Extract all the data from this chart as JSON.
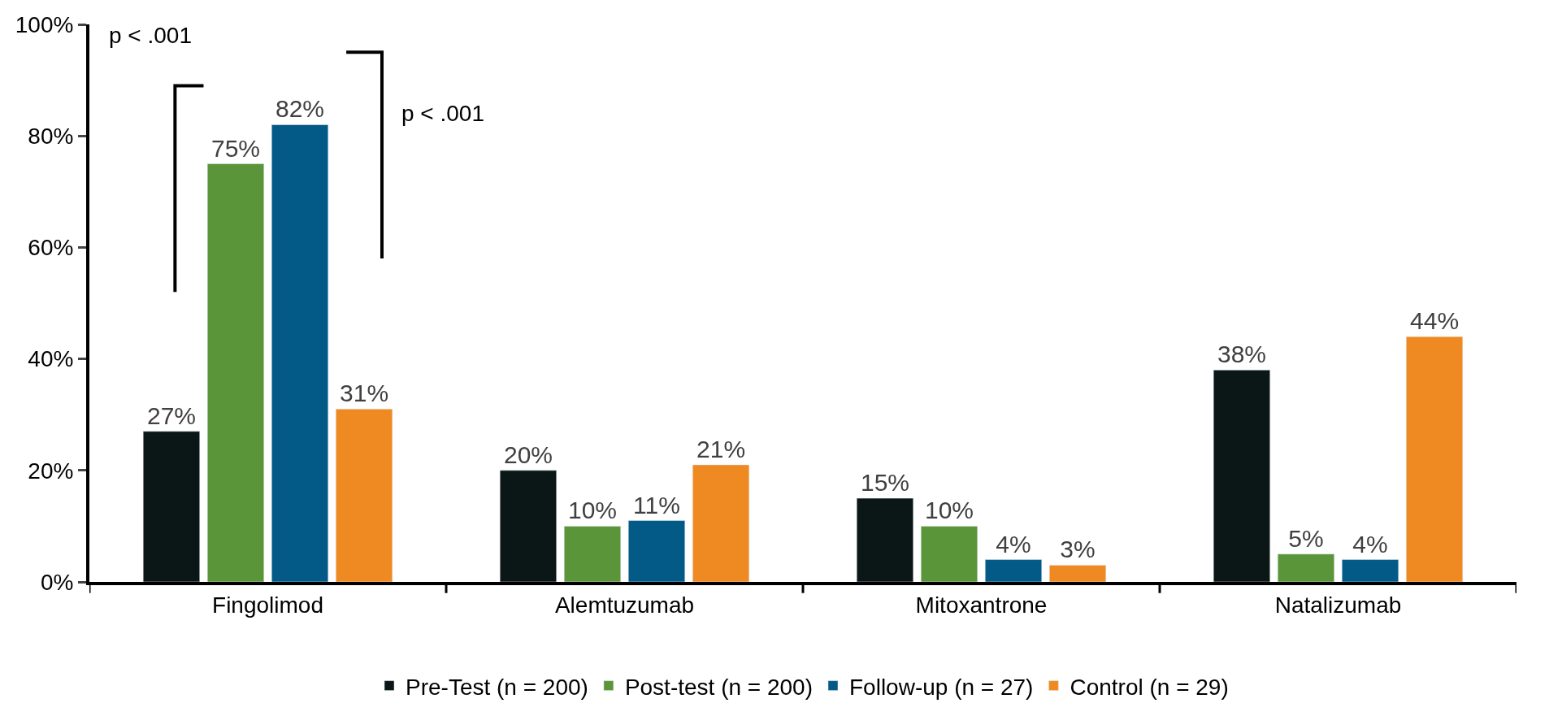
{
  "chart_data": {
    "type": "bar",
    "categories": [
      "Fingolimod",
      "Alemtuzumab",
      "Mitoxantrone",
      "Natalizumab"
    ],
    "series": [
      {
        "name": "Pre-Test (n = 200)",
        "color": "#0b1616",
        "values": [
          27,
          20,
          15,
          38
        ],
        "value_labels": [
          "27%",
          "20%",
          "15%",
          "38%"
        ]
      },
      {
        "name": "Post-test (n = 200)",
        "color": "#5b9539",
        "values": [
          75,
          10,
          10,
          5
        ],
        "value_labels": [
          "75%",
          "10%",
          "10%",
          "5%"
        ]
      },
      {
        "name": "Follow-up (n = 27)",
        "color": "#035a86",
        "values": [
          82,
          11,
          4,
          4
        ],
        "value_labels": [
          "82%",
          "11%",
          "4%",
          "4%"
        ]
      },
      {
        "name": "Control (n = 29)",
        "color": "#ef8a22",
        "values": [
          31,
          21,
          3,
          44
        ],
        "value_labels": [
          "31%",
          "21%",
          "3%",
          "44%"
        ]
      }
    ],
    "ylim": [
      0,
      100
    ],
    "yticks": [
      {
        "value": 0,
        "label": "0%"
      },
      {
        "value": 20,
        "label": "20%"
      },
      {
        "value": 40,
        "label": "40%"
      },
      {
        "value": 60,
        "label": "60%"
      },
      {
        "value": 80,
        "label": "80%"
      },
      {
        "value": 100,
        "label": "100%"
      }
    ],
    "annotations": [
      "p < .001",
      "p < .001"
    ],
    "legend": "bottom"
  }
}
